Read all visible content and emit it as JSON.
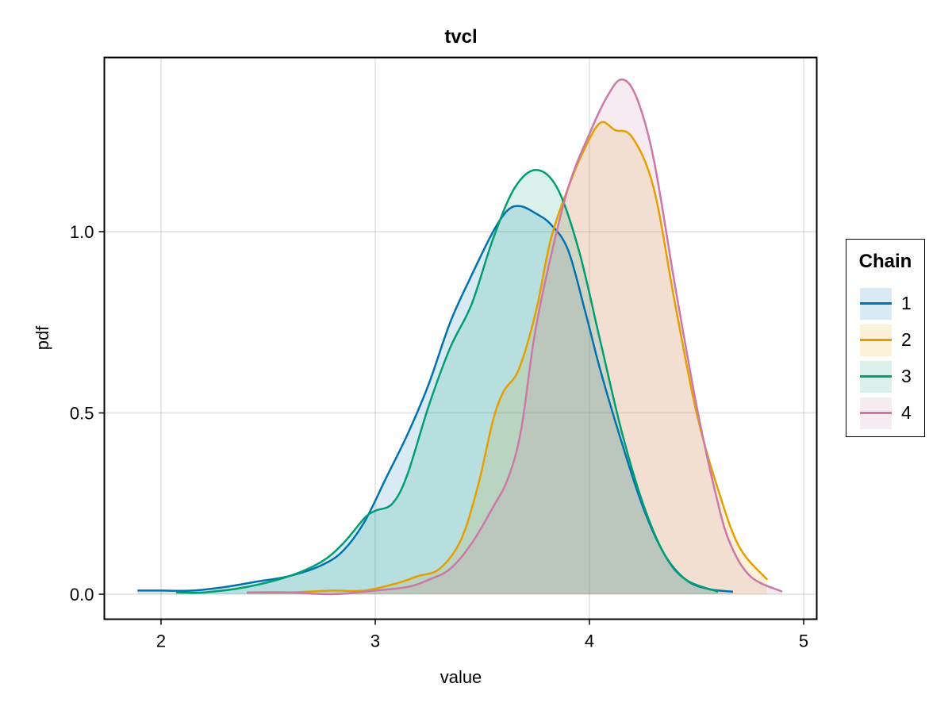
{
  "chart_data": {
    "type": "area",
    "title": "tvcl",
    "xlabel": "value",
    "ylabel": "pdf",
    "xlim": [
      1.75,
      5.07
    ],
    "ylim": [
      -0.07,
      1.48
    ],
    "xticks": [
      2,
      3,
      4,
      5
    ],
    "xtick_labels": [
      "2",
      "3",
      "4",
      "5"
    ],
    "yticks": [
      0.0,
      0.5,
      1.0
    ],
    "ytick_labels": [
      "0.0",
      "0.5",
      "1.0"
    ],
    "grid": true,
    "legend": {
      "title": "Chain",
      "position": "right"
    },
    "series": [
      {
        "name": "1",
        "color": "#0072b2",
        "fill": "rgba(0,114,178,0.15)",
        "x": [
          1.89,
          2.0,
          2.15,
          2.3,
          2.45,
          2.6,
          2.75,
          2.85,
          2.95,
          3.05,
          3.15,
          3.25,
          3.35,
          3.45,
          3.55,
          3.62,
          3.68,
          3.75,
          3.82,
          3.9,
          3.98,
          4.05,
          4.15,
          4.25,
          4.35,
          4.45,
          4.55,
          4.67
        ],
        "y": [
          0.01,
          0.01,
          0.01,
          0.02,
          0.035,
          0.05,
          0.08,
          0.12,
          0.2,
          0.32,
          0.44,
          0.58,
          0.75,
          0.88,
          1.0,
          1.06,
          1.07,
          1.05,
          1.02,
          0.95,
          0.78,
          0.62,
          0.42,
          0.24,
          0.11,
          0.04,
          0.015,
          0.007
        ]
      },
      {
        "name": "2",
        "color": "#e69f00",
        "fill": "rgba(230,159,0,0.15)",
        "x": [
          2.4,
          2.6,
          2.8,
          2.95,
          3.1,
          3.2,
          3.3,
          3.4,
          3.48,
          3.55,
          3.6,
          3.67,
          3.75,
          3.82,
          3.9,
          3.97,
          4.05,
          4.12,
          4.2,
          4.3,
          4.4,
          4.5,
          4.6,
          4.7,
          4.83
        ],
        "y": [
          0.005,
          0.005,
          0.01,
          0.01,
          0.03,
          0.05,
          0.07,
          0.15,
          0.3,
          0.48,
          0.56,
          0.62,
          0.78,
          0.98,
          1.12,
          1.22,
          1.3,
          1.28,
          1.26,
          1.12,
          0.8,
          0.5,
          0.29,
          0.13,
          0.04
        ]
      },
      {
        "name": "3",
        "color": "#009e73",
        "fill": "rgba(0,158,115,0.15)",
        "x": [
          2.07,
          2.2,
          2.4,
          2.6,
          2.75,
          2.85,
          2.95,
          3.0,
          3.08,
          3.15,
          3.25,
          3.35,
          3.45,
          3.55,
          3.65,
          3.75,
          3.85,
          3.95,
          4.05,
          4.15,
          4.25,
          4.35,
          4.45,
          4.6
        ],
        "y": [
          0.005,
          0.005,
          0.02,
          0.05,
          0.09,
          0.14,
          0.21,
          0.23,
          0.25,
          0.33,
          0.52,
          0.68,
          0.8,
          0.98,
          1.12,
          1.17,
          1.12,
          0.95,
          0.7,
          0.45,
          0.25,
          0.11,
          0.04,
          0.007
        ]
      },
      {
        "name": "4",
        "color": "#cc79a7",
        "fill": "rgba(204,121,167,0.15)",
        "x": [
          2.4,
          2.6,
          2.8,
          3.0,
          3.15,
          3.25,
          3.35,
          3.45,
          3.55,
          3.62,
          3.68,
          3.74,
          3.8,
          3.9,
          4.0,
          4.08,
          4.15,
          4.22,
          4.3,
          4.4,
          4.5,
          4.58,
          4.65,
          4.75,
          4.9
        ],
        "y": [
          0.005,
          0.005,
          0.0,
          0.01,
          0.02,
          0.04,
          0.07,
          0.14,
          0.24,
          0.32,
          0.45,
          0.7,
          0.88,
          1.12,
          1.27,
          1.37,
          1.42,
          1.37,
          1.2,
          0.85,
          0.52,
          0.3,
          0.15,
          0.05,
          0.007
        ]
      }
    ]
  },
  "legend_items": [
    "1",
    "2",
    "3",
    "4"
  ],
  "legend_title": "Chain"
}
